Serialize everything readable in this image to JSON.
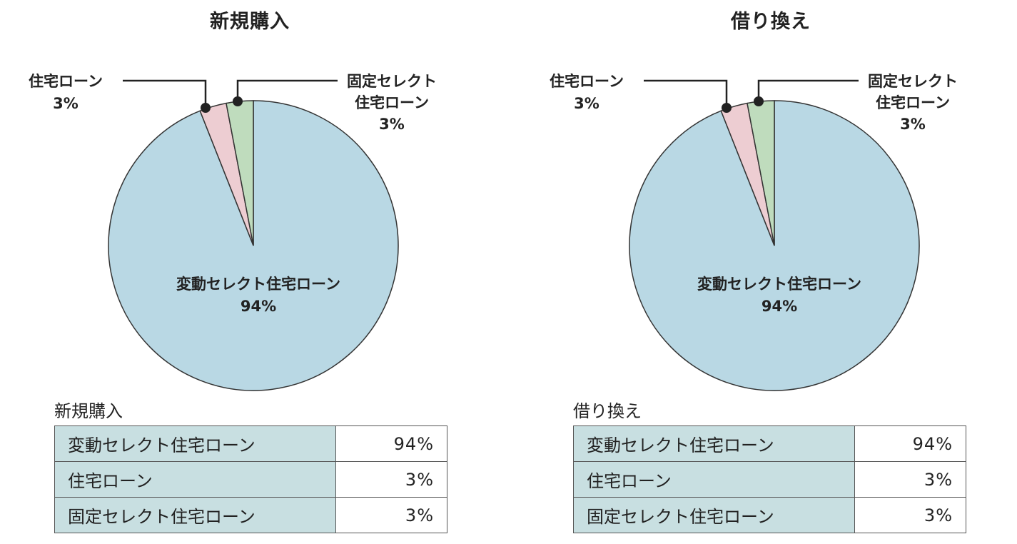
{
  "colors": {
    "variable_select": "#b9d8e4",
    "housing_loan": "#edcdd2",
    "fixed_select": "#bfdcbd",
    "table_header_bg": "#c8dfe1"
  },
  "chart_data": [
    {
      "type": "pie",
      "title": "新規購入",
      "categories": [
        "変動セレクト住宅ローン",
        "住宅ローン",
        "固定セレクト住宅ローン"
      ],
      "values": [
        94,
        3,
        3
      ],
      "unit": "%"
    },
    {
      "type": "pie",
      "title": "借り換え",
      "categories": [
        "変動セレクト住宅ローン",
        "住宅ローン",
        "固定セレクト住宅ローン"
      ],
      "values": [
        94,
        3,
        3
      ],
      "unit": "%"
    }
  ],
  "panels": [
    {
      "title": "新規購入",
      "labels": {
        "housing_name": "住宅ローン",
        "housing_pct": "3%",
        "fixed_line1": "固定セレクト",
        "fixed_line2": "住宅ローン",
        "fixed_pct": "3%",
        "variable_name": "変動セレクト住宅ローン",
        "variable_pct": "94%"
      },
      "table": {
        "caption": "新規購入",
        "rows": [
          {
            "name": "変動セレクト住宅ローン",
            "value": "94%"
          },
          {
            "name": "住宅ローン",
            "value": "3%"
          },
          {
            "name": "固定セレクト住宅ローン",
            "value": "3%"
          }
        ]
      }
    },
    {
      "title": "借り換え",
      "labels": {
        "housing_name": "住宅ローン",
        "housing_pct": "3%",
        "fixed_line1": "固定セレクト",
        "fixed_line2": "住宅ローン",
        "fixed_pct": "3%",
        "variable_name": "変動セレクト住宅ローン",
        "variable_pct": "94%"
      },
      "table": {
        "caption": "借り換え",
        "rows": [
          {
            "name": "変動セレクト住宅ローン",
            "value": "94%"
          },
          {
            "name": "住宅ローン",
            "value": "3%"
          },
          {
            "name": "固定セレクト住宅ローン",
            "value": "3%"
          }
        ]
      }
    }
  ]
}
